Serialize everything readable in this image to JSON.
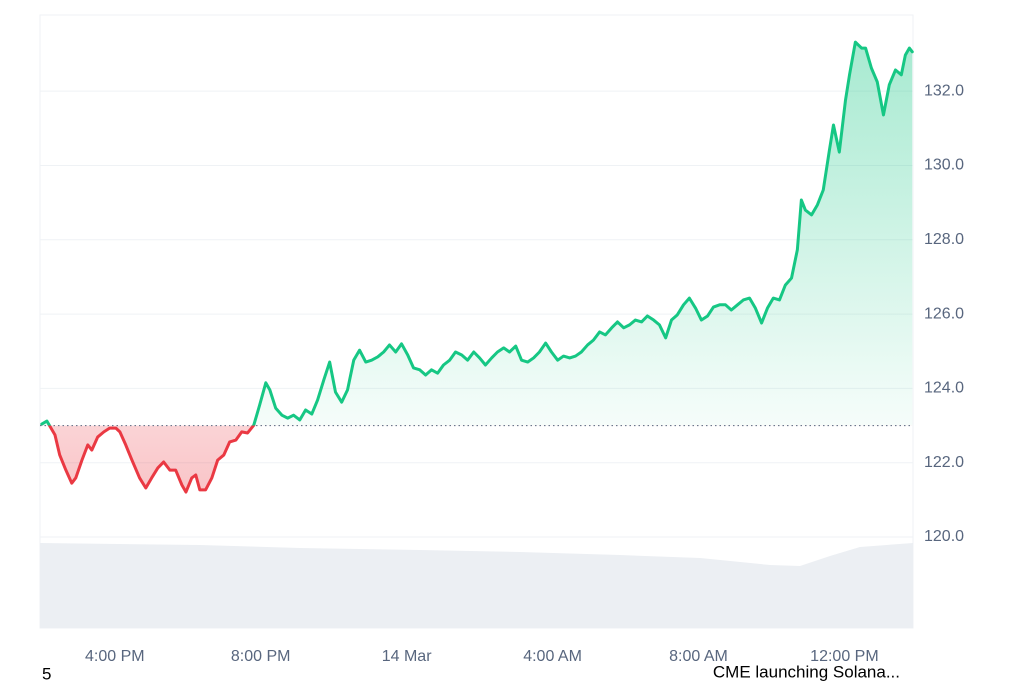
{
  "chart_data": {
    "type": "line",
    "x": [
      14.0,
      14.14,
      14.36,
      14.49,
      14.66,
      14.82,
      14.93,
      15.1,
      15.26,
      15.37,
      15.53,
      15.7,
      15.86,
      16.03,
      16.14,
      16.3,
      16.47,
      16.68,
      16.85,
      17.01,
      17.18,
      17.34,
      17.51,
      17.67,
      17.84,
      17.95,
      18.11,
      18.22,
      18.33,
      18.49,
      18.66,
      18.82,
      18.99,
      19.15,
      19.32,
      19.48,
      19.64,
      19.81,
      19.97,
      20.14,
      20.25,
      20.41,
      20.58,
      20.74,
      20.9,
      21.07,
      21.23,
      21.4,
      21.56,
      21.73,
      21.89,
      22.05,
      22.22,
      22.38,
      22.55,
      22.71,
      22.88,
      23.04,
      23.21,
      23.37,
      23.53,
      23.7,
      23.86,
      24.03,
      24.19,
      24.36,
      24.52,
      24.68,
      24.85,
      25.01,
      25.18,
      25.34,
      25.51,
      25.67,
      25.84,
      26.0,
      26.16,
      26.33,
      26.49,
      26.66,
      26.82,
      26.99,
      27.15,
      27.32,
      27.48,
      27.64,
      27.81,
      27.97,
      28.14,
      28.3,
      28.47,
      28.63,
      28.79,
      28.96,
      29.12,
      29.29,
      29.45,
      29.62,
      29.78,
      29.95,
      30.11,
      30.27,
      30.44,
      30.6,
      30.77,
      30.93,
      31.1,
      31.26,
      31.42,
      31.59,
      31.75,
      31.92,
      32.08,
      32.25,
      32.41,
      32.58,
      32.74,
      32.9,
      33.07,
      33.23,
      33.4,
      33.56,
      33.73,
      33.89,
      34.05,
      34.22,
      34.38,
      34.55,
      34.71,
      34.82,
      34.93,
      35.1,
      35.26,
      35.42,
      35.59,
      35.7,
      35.86,
      36.03,
      36.14,
      36.3,
      36.47,
      36.58,
      36.74,
      36.9,
      37.07,
      37.23,
      37.4,
      37.56,
      37.67,
      37.78,
      37.86
    ],
    "values": [
      123.04,
      123.12,
      122.75,
      122.21,
      121.8,
      121.45,
      121.59,
      122.07,
      122.48,
      122.34,
      122.69,
      122.83,
      122.93,
      122.93,
      122.83,
      122.48,
      122.07,
      121.59,
      121.32,
      121.59,
      121.86,
      122.02,
      121.8,
      121.8,
      121.4,
      121.21,
      121.59,
      121.67,
      121.27,
      121.27,
      121.59,
      122.07,
      122.21,
      122.56,
      122.61,
      122.83,
      122.8,
      123.01,
      123.55,
      124.15,
      123.96,
      123.47,
      123.28,
      123.2,
      123.28,
      123.15,
      123.42,
      123.31,
      123.69,
      124.23,
      124.71,
      123.9,
      123.63,
      123.96,
      124.76,
      125.03,
      124.71,
      124.76,
      124.85,
      124.98,
      125.17,
      124.98,
      125.2,
      124.9,
      124.55,
      124.5,
      124.36,
      124.5,
      124.41,
      124.63,
      124.76,
      124.98,
      124.9,
      124.76,
      124.98,
      124.82,
      124.63,
      124.82,
      124.98,
      125.09,
      124.98,
      125.14,
      124.76,
      124.71,
      124.82,
      124.98,
      125.22,
      124.98,
      124.76,
      124.87,
      124.82,
      124.87,
      124.98,
      125.17,
      125.3,
      125.52,
      125.44,
      125.63,
      125.79,
      125.63,
      125.71,
      125.84,
      125.79,
      125.95,
      125.84,
      125.71,
      125.36,
      125.84,
      125.98,
      126.25,
      126.43,
      126.16,
      125.84,
      125.95,
      126.19,
      126.25,
      126.25,
      126.11,
      126.25,
      126.38,
      126.43,
      126.16,
      125.76,
      126.16,
      126.43,
      126.38,
      126.78,
      126.97,
      127.73,
      129.07,
      128.8,
      128.67,
      128.94,
      129.34,
      130.42,
      131.09,
      130.36,
      131.76,
      132.44,
      133.32,
      133.16,
      133.16,
      132.62,
      132.25,
      131.36,
      132.17,
      132.57,
      132.44,
      132.97,
      133.16,
      133.06
    ],
    "baseline": 123.0,
    "up_color": "#16c784",
    "down_color": "#ea3943",
    "xlim": [
      13.95,
      37.88
    ],
    "xticks": [
      {
        "value": 16,
        "label": "4:00 PM"
      },
      {
        "value": 20,
        "label": "8:00 PM"
      },
      {
        "value": 24,
        "label": "14 Mar"
      },
      {
        "value": 28,
        "label": "4:00 AM"
      },
      {
        "value": 32,
        "label": "8:00 AM"
      },
      {
        "value": 36,
        "label": "12:00 PM"
      }
    ],
    "ylim": [
      119.92,
      134.05
    ],
    "yticks": [
      {
        "value": 120,
        "label": "120.0"
      },
      {
        "value": 122,
        "label": "122.0"
      },
      {
        "value": 124,
        "label": "124.0"
      },
      {
        "value": 126,
        "label": "126.0"
      },
      {
        "value": 128,
        "label": "128.0"
      },
      {
        "value": 130,
        "label": "130.0"
      },
      {
        "value": 132,
        "label": "132.0"
      }
    ],
    "grid": true
  },
  "footer": {
    "page_number": "5",
    "headline": "CME launching Solana..."
  }
}
